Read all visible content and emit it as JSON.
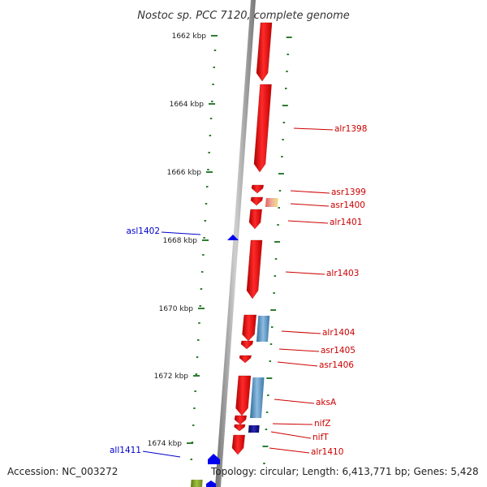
{
  "title": "Nostoc sp. PCC 7120, complete genome",
  "footer": {
    "accession": "Accession: NC_003272",
    "summary": "Topology: circular; Length: 6,413,771 bp; Genes: 5,428"
  },
  "colors": {
    "backbone": "#888888",
    "forward_gene": "#ee0000",
    "reverse_gene": "#0000ee",
    "rna_gene": "#5b8fbf",
    "tick": "#2e7d32",
    "forward_label": "#cc0000",
    "reverse_label": "#0000cc"
  },
  "ticks": [
    "1662 kbp",
    "1664 kbp",
    "1666 kbp",
    "1668 kbp",
    "1670 kbp",
    "1672 kbp",
    "1674 kbp"
  ],
  "genes": [
    {
      "name": "alr1398",
      "strand": "forward"
    },
    {
      "name": "asr1399",
      "strand": "forward"
    },
    {
      "name": "asr1400",
      "strand": "forward"
    },
    {
      "name": "alr1401",
      "strand": "forward"
    },
    {
      "name": "asl1402",
      "strand": "reverse"
    },
    {
      "name": "alr1403",
      "strand": "forward"
    },
    {
      "name": "alr1404",
      "strand": "forward"
    },
    {
      "name": "asr1405",
      "strand": "forward"
    },
    {
      "name": "asr1406",
      "strand": "forward"
    },
    {
      "name": "aksA",
      "strand": "forward"
    },
    {
      "name": "nifZ",
      "strand": "forward"
    },
    {
      "name": "nifT",
      "strand": "forward"
    },
    {
      "name": "alr1410",
      "strand": "forward"
    },
    {
      "name": "all1411",
      "strand": "reverse"
    }
  ]
}
